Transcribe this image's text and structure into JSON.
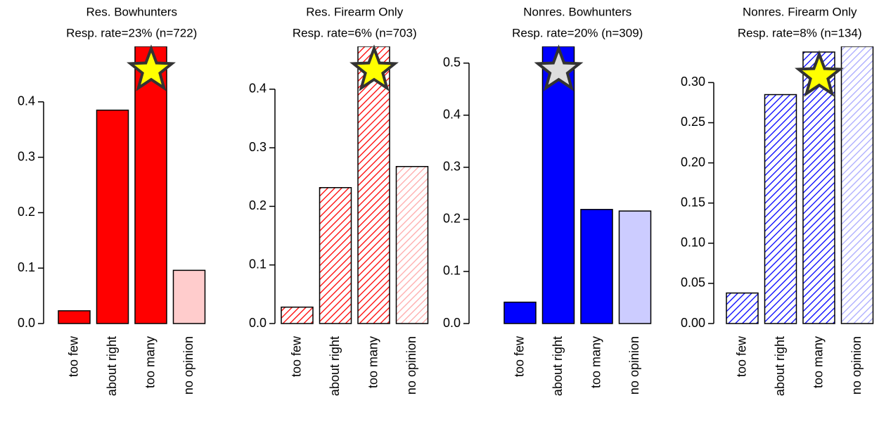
{
  "chart_data": [
    {
      "type": "bar",
      "title": "Res. Bowhunters",
      "subtitle": "Resp. rate=23% (n=722)",
      "categories": [
        "too few",
        "about right",
        "too many",
        "no opinion"
      ],
      "values": [
        0.023,
        0.385,
        0.5,
        0.096
      ],
      "colors": [
        "#ff0000",
        "#ff0000",
        "#ff0000",
        "#ffcccc"
      ],
      "hatched": false,
      "star": 2,
      "star_color": "#ffff00",
      "ylim": [
        0,
        0.5
      ],
      "yticks": [
        {
          "value": 0,
          "label": "0.0"
        },
        0.1,
        0.2,
        0.3,
        0.4
      ]
    },
    {
      "type": "bar",
      "title": "Res. Firearm Only",
      "subtitle": "Resp. rate=6% (n=703)",
      "categories": [
        "too few",
        "about right",
        "too many",
        "no opinion"
      ],
      "values": [
        0.028,
        0.232,
        0.473,
        0.268
      ],
      "colors": [
        "#ff0000",
        "#ff0000",
        "#ff0000",
        "#ffaaaa"
      ],
      "hatched": true,
      "star": 2,
      "star_color": "#ffff00",
      "ylim": [
        0,
        0.473
      ],
      "yticks": [
        {
          "value": 0,
          "label": "0.0"
        },
        0.1,
        0.2,
        0.3,
        0.4
      ]
    },
    {
      "type": "bar",
      "title": "Nonres. Bowhunters",
      "subtitle": "Resp. rate=20% (n=309)",
      "categories": [
        "too few",
        "about right",
        "too many",
        "no opinion"
      ],
      "values": [
        0.041,
        0.532,
        0.219,
        0.216
      ],
      "colors": [
        "#0000ff",
        "#0000ff",
        "#0000ff",
        "#ccccff"
      ],
      "hatched": false,
      "star": 1,
      "star_color": "#dddddd",
      "ylim": [
        0,
        0.532
      ],
      "yticks": [
        {
          "value": 0,
          "label": "0.0"
        },
        0.1,
        0.2,
        0.3,
        0.4,
        0.5
      ]
    },
    {
      "type": "bar",
      "title": "Nonres. Firearm Only",
      "subtitle": "Resp. rate=8% (n=134)",
      "categories": [
        "too few",
        "about right",
        "too many",
        "no opinion"
      ],
      "values": [
        0.038,
        0.285,
        0.338,
        0.345
      ],
      "colors": [
        "#0000ff",
        "#0000ff",
        "#0000ff",
        "#aaaaff"
      ],
      "hatched": true,
      "star": 2,
      "star_color": "#ffff00",
      "ylim": [
        0,
        0.345
      ],
      "yticks": [
        {
          "value": 0,
          "label": "0.00"
        },
        0.05,
        {
          "value": 0.1,
          "label": "0.10"
        },
        0.15,
        {
          "value": 0.2,
          "label": "0.20"
        },
        0.25,
        {
          "value": 0.3,
          "label": "0.30"
        }
      ]
    }
  ]
}
